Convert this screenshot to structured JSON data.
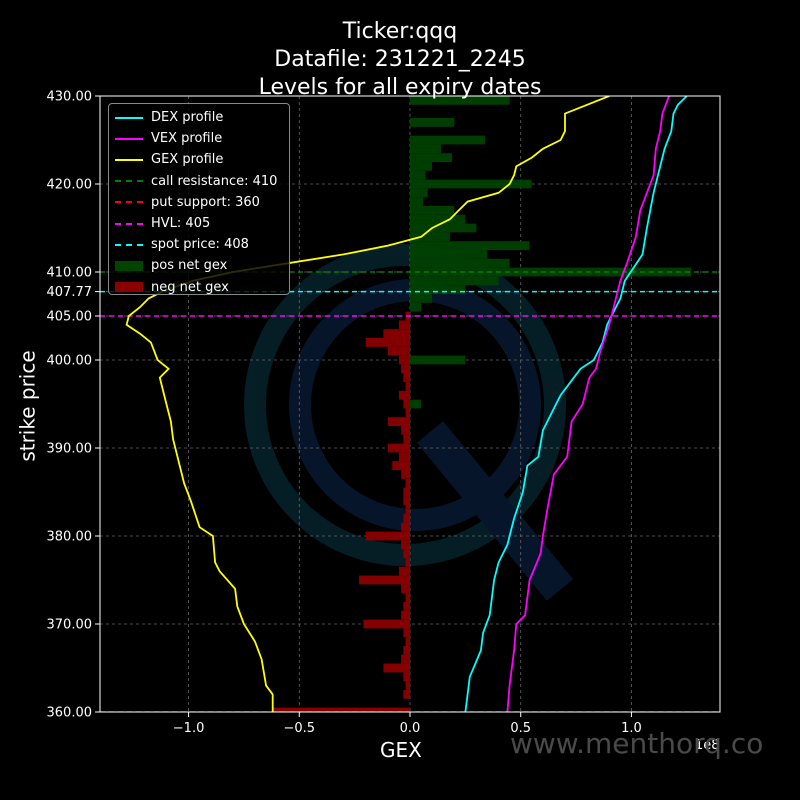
{
  "chart_data": {
    "type": "bar",
    "title_lines": [
      "Ticker:qqq",
      "Datafile: 231221_2245",
      "Levels for all expiry dates"
    ],
    "xlabel": "GEX",
    "ylabel": "strike price",
    "x_scale_note": "1e8",
    "xlim": [
      -1.4,
      1.4
    ],
    "ylim": [
      360,
      430
    ],
    "x_ticks": [
      -1.0,
      -0.5,
      0.0,
      0.5,
      1.0
    ],
    "x_tick_labels": [
      "−1.0",
      "−0.5",
      "0.0",
      "0.5",
      "1.0"
    ],
    "y_ticks": [
      360,
      370,
      380,
      390,
      400,
      405,
      407.77,
      410,
      420,
      430
    ],
    "y_tick_labels": [
      "360.00",
      "370.00",
      "380.00",
      "390.00",
      "400.00",
      "405.00",
      "407.77",
      "410.00",
      "420.00",
      "430.00"
    ],
    "grid": true,
    "legend_position": "top-left",
    "colors": {
      "dex": "#00ffff",
      "vex": "#ff00ff",
      "gex": "#ffff00",
      "pos": "#004400",
      "neg": "#8b0000"
    },
    "levels": [
      {
        "name": "call resistance: 410",
        "value": 410,
        "color": "#008000"
      },
      {
        "name": "put support: 360",
        "value": 360,
        "color": "#ff0000"
      },
      {
        "name": "HVL: 405",
        "value": 405,
        "color": "#ff00ff"
      },
      {
        "name": "spot price: 408",
        "value": 407.77,
        "color": "#00ffff"
      }
    ],
    "pos_bars": [
      {
        "strike": 429.5,
        "value": 0.45
      },
      {
        "strike": 427,
        "value": 0.2
      },
      {
        "strike": 425,
        "value": 0.34
      },
      {
        "strike": 424,
        "value": 0.14
      },
      {
        "strike": 423,
        "value": 0.19
      },
      {
        "strike": 422,
        "value": 0.1
      },
      {
        "strike": 421,
        "value": 0.07
      },
      {
        "strike": 420,
        "value": 0.55
      },
      {
        "strike": 419,
        "value": 0.08
      },
      {
        "strike": 418,
        "value": 0.06
      },
      {
        "strike": 417,
        "value": 0.2
      },
      {
        "strike": 416,
        "value": 0.25
      },
      {
        "strike": 415,
        "value": 0.3
      },
      {
        "strike": 414,
        "value": 0.18
      },
      {
        "strike": 413,
        "value": 0.54
      },
      {
        "strike": 412,
        "value": 0.35
      },
      {
        "strike": 411,
        "value": 0.45
      },
      {
        "strike": 410,
        "value": 1.27
      },
      {
        "strike": 409,
        "value": 0.4
      },
      {
        "strike": 408,
        "value": 0.25
      },
      {
        "strike": 407,
        "value": 0.1
      },
      {
        "strike": 406,
        "value": 0.05
      },
      {
        "strike": 400,
        "value": 0.25
      },
      {
        "strike": 395,
        "value": 0.05
      }
    ],
    "neg_bars": [
      {
        "strike": 405,
        "value": -0.02
      },
      {
        "strike": 404,
        "value": -0.05
      },
      {
        "strike": 403,
        "value": -0.12
      },
      {
        "strike": 402,
        "value": -0.2
      },
      {
        "strike": 401,
        "value": -0.1
      },
      {
        "strike": 400,
        "value": -0.05
      },
      {
        "strike": 399,
        "value": -0.04
      },
      {
        "strike": 398,
        "value": -0.03
      },
      {
        "strike": 397,
        "value": -0.02
      },
      {
        "strike": 396,
        "value": -0.05
      },
      {
        "strike": 395,
        "value": -0.03
      },
      {
        "strike": 394,
        "value": -0.02
      },
      {
        "strike": 393,
        "value": -0.1
      },
      {
        "strike": 392,
        "value": -0.04
      },
      {
        "strike": 391,
        "value": -0.03
      },
      {
        "strike": 390,
        "value": -0.1
      },
      {
        "strike": 389,
        "value": -0.05
      },
      {
        "strike": 388,
        "value": -0.08
      },
      {
        "strike": 387,
        "value": -0.04
      },
      {
        "strike": 386,
        "value": -0.02
      },
      {
        "strike": 385,
        "value": -0.03
      },
      {
        "strike": 384,
        "value": -0.03
      },
      {
        "strike": 383,
        "value": -0.02
      },
      {
        "strike": 382,
        "value": -0.03
      },
      {
        "strike": 381,
        "value": -0.04
      },
      {
        "strike": 380,
        "value": -0.2
      },
      {
        "strike": 379,
        "value": -0.04
      },
      {
        "strike": 378,
        "value": -0.03
      },
      {
        "strike": 377,
        "value": -0.02
      },
      {
        "strike": 376,
        "value": -0.05
      },
      {
        "strike": 375,
        "value": -0.23
      },
      {
        "strike": 374,
        "value": -0.04
      },
      {
        "strike": 373,
        "value": -0.02
      },
      {
        "strike": 372,
        "value": -0.03
      },
      {
        "strike": 371,
        "value": -0.04
      },
      {
        "strike": 370,
        "value": -0.21
      },
      {
        "strike": 369,
        "value": -0.03
      },
      {
        "strike": 368,
        "value": -0.02
      },
      {
        "strike": 367,
        "value": -0.03
      },
      {
        "strike": 366,
        "value": -0.04
      },
      {
        "strike": 365,
        "value": -0.12
      },
      {
        "strike": 364,
        "value": -0.03
      },
      {
        "strike": 363,
        "value": -0.02
      },
      {
        "strike": 362,
        "value": -0.03
      },
      {
        "strike": 360,
        "value": -0.62
      }
    ],
    "series": [
      {
        "name": "DEX profile",
        "color": "#00ffff",
        "points": [
          [
            0.25,
            360
          ],
          [
            0.26,
            362
          ],
          [
            0.27,
            364
          ],
          [
            0.32,
            367
          ],
          [
            0.33,
            369
          ],
          [
            0.36,
            371
          ],
          [
            0.37,
            373
          ],
          [
            0.38,
            375
          ],
          [
            0.4,
            377
          ],
          [
            0.44,
            379
          ],
          [
            0.45,
            380
          ],
          [
            0.47,
            382
          ],
          [
            0.51,
            385
          ],
          [
            0.53,
            388
          ],
          [
            0.58,
            389
          ],
          [
            0.6,
            392
          ],
          [
            0.66,
            395
          ],
          [
            0.68,
            396
          ],
          [
            0.77,
            399
          ],
          [
            0.83,
            400
          ],
          [
            0.87,
            402
          ],
          [
            0.89,
            404
          ],
          [
            0.91,
            405
          ],
          [
            0.95,
            407
          ],
          [
            0.97,
            409
          ],
          [
            1.05,
            412
          ],
          [
            1.07,
            415
          ],
          [
            1.1,
            419
          ],
          [
            1.12,
            421
          ],
          [
            1.15,
            424
          ],
          [
            1.18,
            426
          ],
          [
            1.19,
            428
          ],
          [
            1.21,
            429
          ],
          [
            1.25,
            430
          ]
        ]
      },
      {
        "name": "VEX profile",
        "color": "#ff00ff",
        "points": [
          [
            0.44,
            360
          ],
          [
            0.45,
            363
          ],
          [
            0.47,
            367
          ],
          [
            0.48,
            370
          ],
          [
            0.52,
            371
          ],
          [
            0.54,
            375
          ],
          [
            0.59,
            378
          ],
          [
            0.6,
            380
          ],
          [
            0.62,
            383
          ],
          [
            0.65,
            387
          ],
          [
            0.71,
            389
          ],
          [
            0.73,
            393
          ],
          [
            0.78,
            395
          ],
          [
            0.81,
            398
          ],
          [
            0.84,
            399
          ],
          [
            0.86,
            401
          ],
          [
            0.9,
            404
          ],
          [
            0.93,
            407
          ],
          [
            0.95,
            409
          ],
          [
            0.98,
            411
          ],
          [
            1.02,
            414
          ],
          [
            1.04,
            417
          ],
          [
            1.07,
            419
          ],
          [
            1.1,
            421
          ],
          [
            1.11,
            424
          ],
          [
            1.13,
            426
          ],
          [
            1.14,
            428
          ],
          [
            1.17,
            430
          ]
        ]
      },
      {
        "name": "GEX profile",
        "color": "#ffff00",
        "points": [
          [
            -0.62,
            360
          ],
          [
            -0.62,
            362
          ],
          [
            -0.65,
            363
          ],
          [
            -0.67,
            366
          ],
          [
            -0.7,
            368
          ],
          [
            -0.75,
            370
          ],
          [
            -0.78,
            372
          ],
          [
            -0.79,
            374
          ],
          [
            -0.86,
            376
          ],
          [
            -0.88,
            377
          ],
          [
            -0.89,
            380
          ],
          [
            -0.95,
            381
          ],
          [
            -0.99,
            384
          ],
          [
            -1.02,
            386
          ],
          [
            -1.04,
            388
          ],
          [
            -1.05,
            389
          ],
          [
            -1.07,
            391
          ],
          [
            -1.08,
            393
          ],
          [
            -1.1,
            395
          ],
          [
            -1.12,
            397
          ],
          [
            -1.13,
            398
          ],
          [
            -1.09,
            399
          ],
          [
            -1.14,
            400
          ],
          [
            -1.17,
            402
          ],
          [
            -1.22,
            403
          ],
          [
            -1.28,
            404
          ],
          [
            -1.27,
            405
          ],
          [
            -1.22,
            406
          ],
          [
            -1.18,
            407
          ],
          [
            -1.1,
            408
          ],
          [
            -0.98,
            409
          ],
          [
            -0.8,
            410
          ],
          [
            -0.55,
            411
          ],
          [
            -0.3,
            412
          ],
          [
            -0.1,
            413
          ],
          [
            0.05,
            414
          ],
          [
            0.1,
            415
          ],
          [
            0.18,
            416
          ],
          [
            0.22,
            417
          ],
          [
            0.26,
            418
          ],
          [
            0.4,
            419
          ],
          [
            0.45,
            420
          ],
          [
            0.47,
            421
          ],
          [
            0.48,
            422
          ],
          [
            0.55,
            423
          ],
          [
            0.6,
            424
          ],
          [
            0.68,
            425
          ],
          [
            0.7,
            426
          ],
          [
            0.7,
            428
          ],
          [
            0.8,
            429
          ],
          [
            0.9,
            430
          ]
        ]
      }
    ]
  },
  "legend": [
    {
      "label": "DEX profile",
      "kind": "line",
      "color": "#00ffff",
      "dash": false
    },
    {
      "label": "VEX profile",
      "kind": "line",
      "color": "#ff00ff",
      "dash": false
    },
    {
      "label": "GEX profile",
      "kind": "line",
      "color": "#ffff00",
      "dash": false
    },
    {
      "label": "call resistance: 410",
      "kind": "line",
      "color": "#008000",
      "dash": true
    },
    {
      "label": "put support: 360",
      "kind": "line",
      "color": "#ff0000",
      "dash": true
    },
    {
      "label": "HVL: 405",
      "kind": "line",
      "color": "#ff00ff",
      "dash": true
    },
    {
      "label": "spot price: 408",
      "kind": "line",
      "color": "#00ffff",
      "dash": true
    },
    {
      "label": "pos net gex",
      "kind": "box",
      "color": "#004400"
    },
    {
      "label": "neg net gex",
      "kind": "box",
      "color": "#8b0000"
    }
  ],
  "watermark": "www.menthorq.co"
}
